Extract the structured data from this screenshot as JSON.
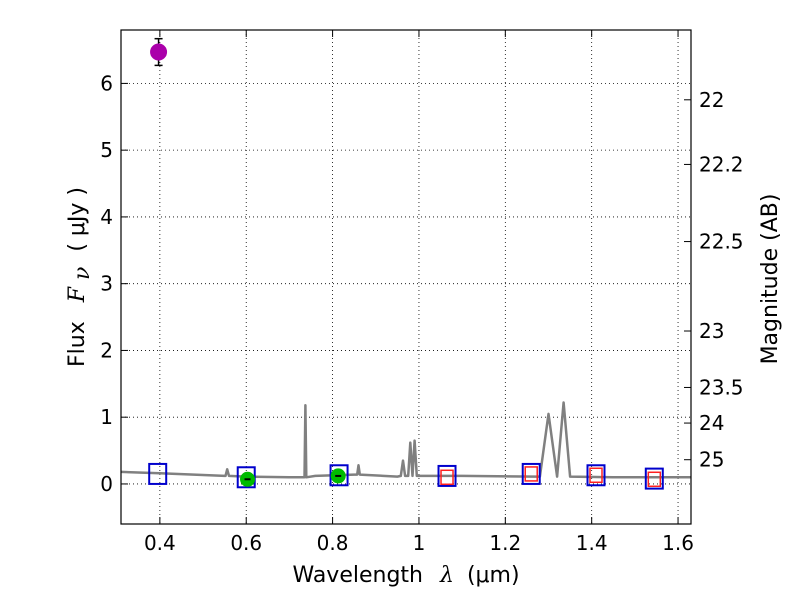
{
  "chart_data": {
    "type": "scatter",
    "title": "",
    "xlabel": {
      "prefix": "Wavelength",
      "symbol": "λ",
      "unit": "(μm)"
    },
    "ylabel": {
      "prefix": "Flux",
      "symbol": "F",
      "subscript": "ν",
      "unit": "( μJy )"
    },
    "y2label": "Magnitude (AB)",
    "xlim": [
      0.31,
      1.63
    ],
    "ylim": [
      -0.6,
      6.8
    ],
    "xticks": [
      0.4,
      0.6,
      0.8,
      1.0,
      1.2,
      1.4,
      1.6
    ],
    "xtick_labels": [
      "0.4",
      "0.6",
      "0.8",
      "1",
      "1.2",
      "1.4",
      "1.6"
    ],
    "yticks": [
      0,
      1,
      2,
      3,
      4,
      5,
      6
    ],
    "ytick_labels": [
      "0",
      "1",
      "2",
      "3",
      "4",
      "5",
      "6"
    ],
    "mag_ticks": [
      {
        "label": "22",
        "mag": 22.0
      },
      {
        "label": "22.2",
        "mag": 22.2
      },
      {
        "label": "22.5",
        "mag": 22.5
      },
      {
        "label": "23",
        "mag": 23.0
      },
      {
        "label": "23.5",
        "mag": 23.5
      },
      {
        "label": "24",
        "mag": 24.0
      },
      {
        "label": "25",
        "mag": 25.0
      }
    ],
    "mag_zero_point": 23.9,
    "grid": true,
    "colors": {
      "spectrum": "#808080",
      "model_square": "#0000cc",
      "observed_square": "#ff2020",
      "detection": "#00bb00",
      "outlier": "#aa00aa",
      "axis": "#000000"
    },
    "series": [
      {
        "kind": "model-spectrum",
        "points": [
          [
            0.31,
            0.18
          ],
          [
            0.4,
            0.16
          ],
          [
            0.55,
            0.12
          ],
          [
            0.552,
            0.12
          ],
          [
            0.556,
            0.22
          ],
          [
            0.56,
            0.12
          ],
          [
            0.6,
            0.11
          ],
          [
            0.7,
            0.1
          ],
          [
            0.735,
            0.1
          ],
          [
            0.737,
            1.18
          ],
          [
            0.739,
            0.1
          ],
          [
            0.76,
            0.12
          ],
          [
            0.85,
            0.14
          ],
          [
            0.857,
            0.14
          ],
          [
            0.86,
            0.28
          ],
          [
            0.863,
            0.14
          ],
          [
            0.95,
            0.11
          ],
          [
            0.958,
            0.12
          ],
          [
            0.963,
            0.35
          ],
          [
            0.968,
            0.12
          ],
          [
            0.975,
            0.12
          ],
          [
            0.98,
            0.62
          ],
          [
            0.985,
            0.12
          ],
          [
            0.99,
            0.65
          ],
          [
            0.995,
            0.12
          ],
          [
            1.1,
            0.12
          ],
          [
            1.27,
            0.11
          ],
          [
            1.28,
            0.11
          ],
          [
            1.3,
            1.05
          ],
          [
            1.32,
            0.11
          ],
          [
            1.335,
            1.22
          ],
          [
            1.35,
            0.11
          ],
          [
            1.45,
            0.1
          ],
          [
            1.63,
            0.1
          ]
        ]
      },
      {
        "kind": "model-photometry",
        "points": [
          [
            0.395,
            0.15
          ],
          [
            0.6,
            0.1
          ],
          [
            0.815,
            0.13
          ],
          [
            1.065,
            0.12
          ],
          [
            1.26,
            0.15
          ],
          [
            1.41,
            0.13
          ],
          [
            1.545,
            0.08
          ]
        ]
      },
      {
        "kind": "observed-photometry",
        "points": [
          [
            1.065,
            0.1
          ],
          [
            1.26,
            0.15
          ],
          [
            1.41,
            0.13
          ],
          [
            1.545,
            0.07
          ]
        ]
      },
      {
        "kind": "detections",
        "points": [
          {
            "x": 0.603,
            "y": 0.07,
            "err": 0.04
          },
          {
            "x": 0.813,
            "y": 0.12,
            "err": 0.04
          }
        ]
      },
      {
        "kind": "outlier",
        "points": [
          {
            "x": 0.397,
            "y": 6.47,
            "err": 0.2
          }
        ]
      }
    ]
  }
}
